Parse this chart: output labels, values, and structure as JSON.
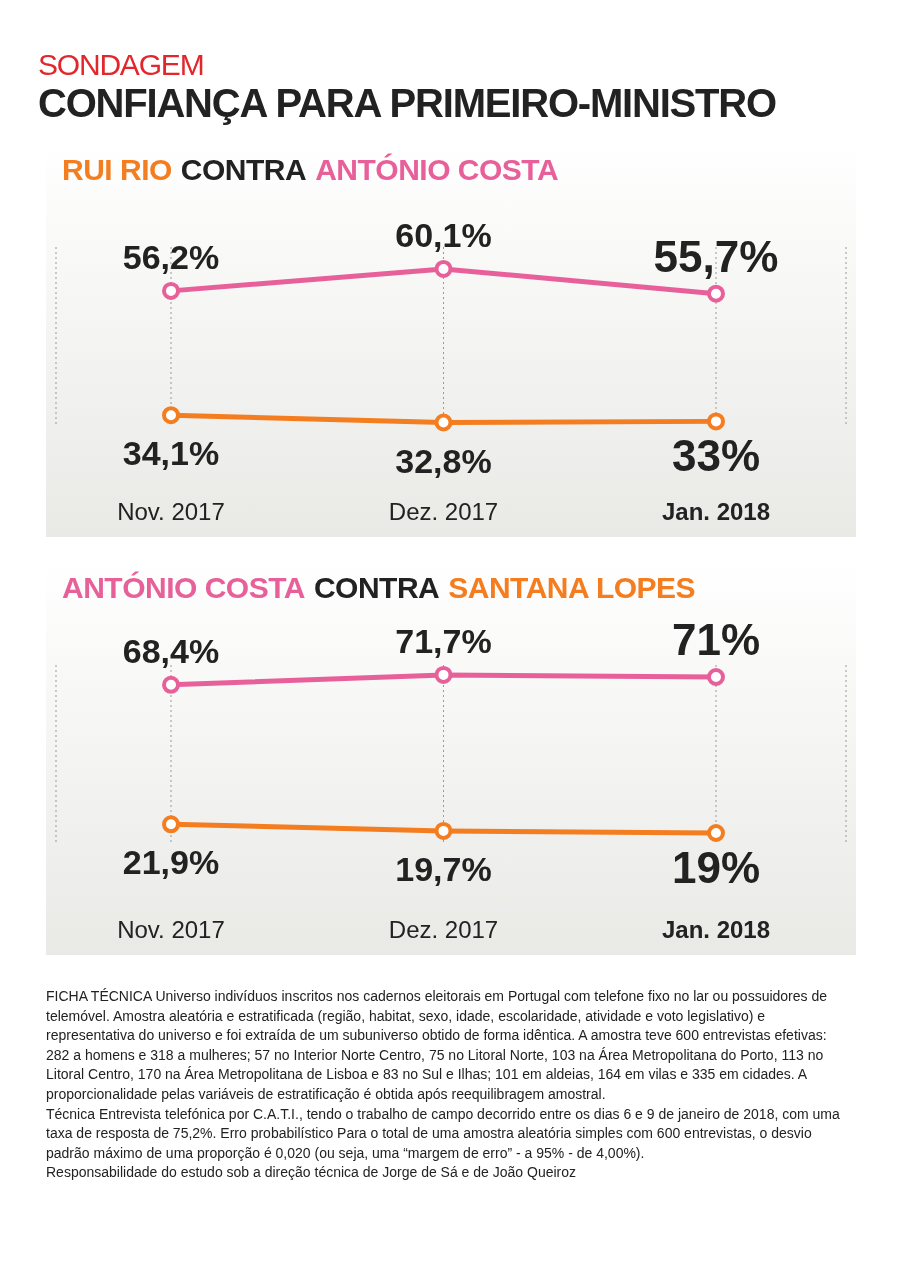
{
  "chart_data": [
    {
      "type": "line",
      "title": "CONTRA",
      "annotations": [
        "SONDAGEM",
        "CONFIANÇA PARA PRIMEIRO-MINISTRO"
      ],
      "categories": [
        "Nov. 2017",
        "Dez. 2017",
        "Jan. 2018"
      ],
      "series": [
        {
          "name": "RUI RIO",
          "color": "#f47d20",
          "values": [
            34.1,
            32.8,
            33
          ],
          "value_labels": [
            "34,1%",
            "32,8%",
            "33%"
          ]
        },
        {
          "name": "ANTÓNIO COSTA",
          "color": "#e8609a",
          "values": [
            56.2,
            60.1,
            55.7
          ],
          "value_labels": [
            "56,2%",
            "60,1%",
            "55,7%"
          ]
        }
      ],
      "grid": "x",
      "marker": "circle"
    },
    {
      "type": "line",
      "title": "CONTRA",
      "annotations": [
        "FICHA TÉCNICA Universo indivíduos inscritos nos cadernos eleitorais em Portugal com telefone fixo no lar ou possuidores de telemóvel. Amostra aleatória e estratificada (região, habitat, sexo, idade, escolaridade, atividade e voto legislativo) e representativa do universo e foi extraída de um subuniverso obtido de forma idêntica. A amostra teve 600 entrevistas efetivas: 282 a homens e 318 a mulheres; 57 no Interior Norte Centro, 75 no Litoral Norte, 103 na Área Metropolitana do Porto, 113 no Litoral Centro, 170 na Área Metropolitana de Lisboa e 83 no Sul e Ilhas; 101 em aldeias, 164 em vilas e 335 em cidades. A proporcionalidade pelas variáveis de estratificação é obtida após reequilibragem amostral.",
        "Técnica Entrevista telefónica por C.A.T.I., tendo o trabalho de campo decorrido entre os dias 6 e 9 de janeiro de 2018, com uma taxa de resposta de 75,2%. Erro probabilístico Para o total de uma amostra aleatória simples com 600 entrevistas, o desvio padrão máximo de uma proporção é 0,020 (ou seja, uma “margem de erro” - a 95% - de 4,00%).",
        "Responsabilidade do estudo sob a direção técnica de Jorge de Sá e de João Queiroz"
      ],
      "categories": [
        "Nov. 2017",
        "Dez. 2017",
        "Jan. 2018"
      ],
      "series": [
        {
          "name": "ANTÓNIO COSTA",
          "color": "#e8609a",
          "values": [
            68.4,
            71.7,
            71
          ],
          "value_labels": [
            "68,4%",
            "71,7%",
            "71%"
          ]
        },
        {
          "name": "SANTANA LOPES",
          "color": "#f47d20",
          "values": [
            21.9,
            19.7,
            19
          ],
          "value_labels": [
            "21,9%",
            "19,7%",
            "19%"
          ]
        }
      ],
      "grid": "x",
      "marker": "circle"
    }
  ]
}
